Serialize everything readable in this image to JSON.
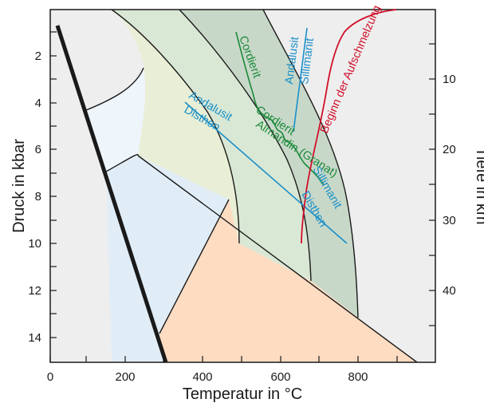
{
  "colors": {
    "region_white": "#ffffff",
    "region_lightblue": "#eef5fb",
    "region_paleblue": "#e1edf6",
    "region_yellowgreen": "#e9efd6",
    "region_lightgreen": "#d9e8d5",
    "region_darkgreen": "#c8d8c8",
    "region_grey": "#eeeeee",
    "region_peach": "#fddcc2",
    "blue_lines": "#1a8fc8",
    "green_lines": "#1a8a3a",
    "red_line": "#d0102a",
    "outline": "#1a1a1a"
  },
  "axes": {
    "x_title": "Temperatur in °C",
    "y_left_title": "Druck in kbar",
    "y_right_title": "Tiefe in km",
    "x_ticks": [
      "0",
      "200",
      "400",
      "600",
      "800"
    ],
    "y_left_ticks": [
      "2",
      "4",
      "6",
      "8",
      "10",
      "12",
      "14"
    ],
    "y_right_ticks": [
      "10",
      "20",
      "30",
      "40"
    ]
  },
  "labels": {
    "andalusit_top": "Andalusit",
    "sillimanit_top": "Sillimanit",
    "cordierit_left": "Cordierit",
    "cordierit_mid": "Cordierit",
    "almandin": "Almandin (Granat)",
    "andalusit_left": "Andalusit",
    "disthen_left": "Disthen",
    "sillimanit_right": "Sillimanit",
    "disthen_right": "Disthen",
    "aufschmelzung": "Beginn der Aufschmelzung"
  }
}
